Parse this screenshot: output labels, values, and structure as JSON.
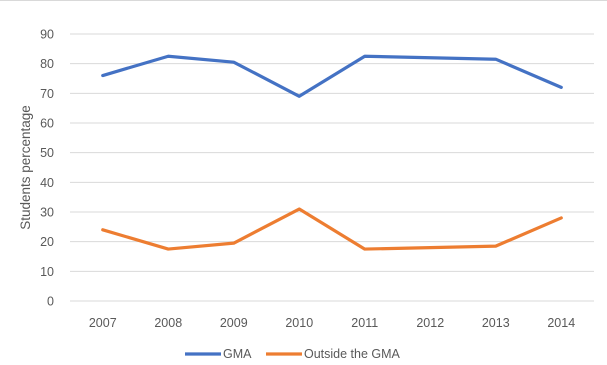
{
  "chart_data": {
    "type": "line",
    "title": "",
    "xlabel": "",
    "ylabel": "Students percentage",
    "categories": [
      "2007",
      "2008",
      "2009",
      "2010",
      "2011",
      "2012",
      "2013",
      "2014"
    ],
    "ylim": [
      0,
      90
    ],
    "yticks": [
      0,
      10,
      20,
      30,
      40,
      50,
      60,
      70,
      80,
      90
    ],
    "grid": true,
    "legend_position": "bottom",
    "series": [
      {
        "name": "GMA",
        "color": "#4472c4",
        "values": [
          76,
          82.5,
          80.5,
          69,
          82.5,
          82,
          81.5,
          72
        ]
      },
      {
        "name": "Outside the GMA",
        "color": "#ed7d31",
        "values": [
          24,
          17.5,
          19.5,
          31,
          17.5,
          18,
          18.5,
          28
        ]
      }
    ]
  }
}
